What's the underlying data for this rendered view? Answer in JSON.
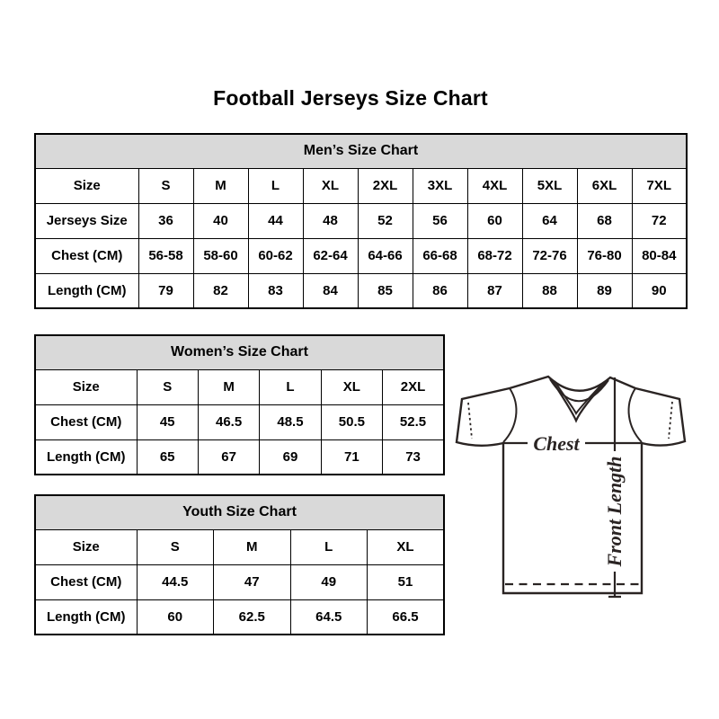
{
  "page": {
    "title": "Football Jerseys Size Chart"
  },
  "tables": {
    "mens": {
      "title": "Men’s Size Chart",
      "rows": [
        [
          "Size",
          "S",
          "M",
          "L",
          "XL",
          "2XL",
          "3XL",
          "4XL",
          "5XL",
          "6XL",
          "7XL"
        ],
        [
          "Jerseys Size",
          "36",
          "40",
          "44",
          "48",
          "52",
          "56",
          "60",
          "64",
          "68",
          "72"
        ],
        [
          "Chest (CM)",
          "56-58",
          "58-60",
          "60-62",
          "62-64",
          "64-66",
          "66-68",
          "68-72",
          "72-76",
          "76-80",
          "80-84"
        ],
        [
          "Length (CM)",
          "79",
          "82",
          "83",
          "84",
          "85",
          "86",
          "87",
          "88",
          "89",
          "90"
        ]
      ]
    },
    "womens": {
      "title": "Women’s Size Chart",
      "rows": [
        [
          "Size",
          "S",
          "M",
          "L",
          "XL",
          "2XL"
        ],
        [
          "Chest (CM)",
          "45",
          "46.5",
          "48.5",
          "50.5",
          "52.5"
        ],
        [
          "Length (CM)",
          "65",
          "67",
          "69",
          "71",
          "73"
        ]
      ]
    },
    "youth": {
      "title": "Youth Size Chart",
      "rows": [
        [
          "Size",
          "S",
          "M",
          "L",
          "XL"
        ],
        [
          "Chest (CM)",
          "44.5",
          "47",
          "49",
          "51"
        ],
        [
          "Length (CM)",
          "60",
          "62.5",
          "64.5",
          "66.5"
        ]
      ]
    }
  },
  "diagram": {
    "chest_label": "Chest",
    "front_length_label": "Front Length"
  },
  "colors": {
    "table_header_bg": "#d9d9d9",
    "table_border": "#000000",
    "text": "#000000",
    "jersey_line": "#2a2423"
  }
}
